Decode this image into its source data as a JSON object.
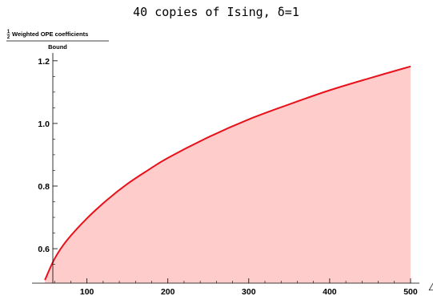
{
  "chart_data": {
    "type": "area",
    "title": "40 copies of Ising, δ=1",
    "ylabel": {
      "fraction_numerator": "1",
      "fraction_denominator": "2",
      "top": "Weighted OPE coefficients",
      "bottom": "Bound"
    },
    "xlabel": "Δ",
    "xlim": [
      40,
      503
    ],
    "ylim": [
      0.49,
      1.22
    ],
    "x_ticks": [
      100,
      200,
      300,
      400,
      500
    ],
    "x_tick_labels": [
      "100",
      "200",
      "300",
      "400",
      "500"
    ],
    "y_ticks": [
      0.6,
      0.8,
      1.0,
      1.2
    ],
    "y_tick_labels": [
      "0.6",
      "0.8",
      "1.0",
      "1.2"
    ],
    "grid": false,
    "series": [
      {
        "fill": "below",
        "x": [
          48,
          60,
          75,
          100,
          125,
          150,
          175,
          200,
          250,
          300,
          350,
          400,
          450,
          500
        ],
        "y": [
          0.5,
          0.568,
          0.626,
          0.697,
          0.756,
          0.807,
          0.85,
          0.89,
          0.956,
          1.013,
          1.061,
          1.106,
          1.145,
          1.182
        ]
      }
    ],
    "colors": {
      "line": "#e8111a",
      "fill": "#ffcccc",
      "axis": "#000000"
    }
  }
}
